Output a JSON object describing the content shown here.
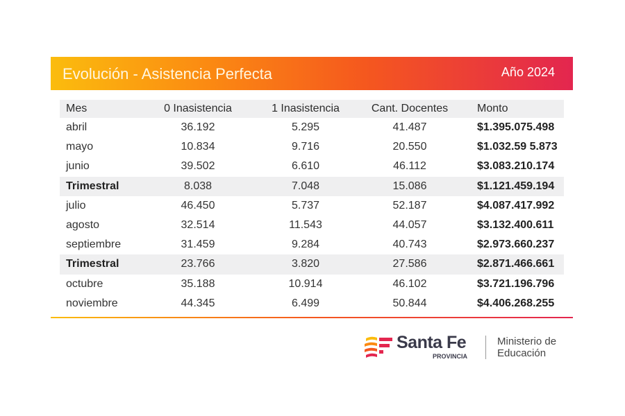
{
  "header": {
    "title": "Evolución - Asistencia Perfecta",
    "year": "Año 2024"
  },
  "table": {
    "columns": [
      "Mes",
      "0 Inasistencia",
      "1 Inasistencia",
      "Cant. Docentes",
      "Monto"
    ],
    "rows": [
      {
        "mes": "abril",
        "cero": "36.192",
        "uno": "5.295",
        "docentes": "41.487",
        "monto": "$1.395.075.498",
        "subtotal": false
      },
      {
        "mes": "mayo",
        "cero": "10.834",
        "uno": "9.716",
        "docentes": "20.550",
        "monto": "$1.032.59 5.873",
        "subtotal": false
      },
      {
        "mes": "junio",
        "cero": "39.502",
        "uno": "6.610",
        "docentes": "46.112",
        "monto": "$3.083.210.174",
        "subtotal": false
      },
      {
        "mes": "Trimestral",
        "cero": "8.038",
        "uno": "7.048",
        "docentes": "15.086",
        "monto": "$1.121.459.194",
        "subtotal": true
      },
      {
        "mes": "julio",
        "cero": "46.450",
        "uno": "5.737",
        "docentes": "52.187",
        "monto": "$4.087.417.992",
        "subtotal": false
      },
      {
        "mes": "agosto",
        "cero": "32.514",
        "uno": "11.543",
        "docentes": "44.057",
        "monto": "$3.132.400.611",
        "subtotal": false
      },
      {
        "mes": "septiembre",
        "cero": "31.459",
        "uno": "9.284",
        "docentes": "40.743",
        "monto": "$2.973.660.237",
        "subtotal": false
      },
      {
        "mes": "Trimestral",
        "cero": "23.766",
        "uno": "3.820",
        "docentes": "27.586",
        "monto": "$2.871.466.661",
        "subtotal": true
      },
      {
        "mes": "octubre",
        "cero": "35.188",
        "uno": "10.914",
        "docentes": "46.102",
        "monto": "$3.721.196.796",
        "subtotal": false
      },
      {
        "mes": "noviembre",
        "cero": "44.345",
        "uno": "6.499",
        "docentes": "50.844",
        "monto": "$4.406.268.255",
        "subtotal": false
      }
    ]
  },
  "footer": {
    "brand": "Santa Fe",
    "brand_sub": "PROVINCIA",
    "ministry_line1": "Ministerio de",
    "ministry_line2": "Educación"
  },
  "colors": {
    "gradient_start": "#fbbc0e",
    "gradient_mid": "#f5581e",
    "gradient_end": "#e3264f",
    "row_highlight": "#efeff0"
  }
}
